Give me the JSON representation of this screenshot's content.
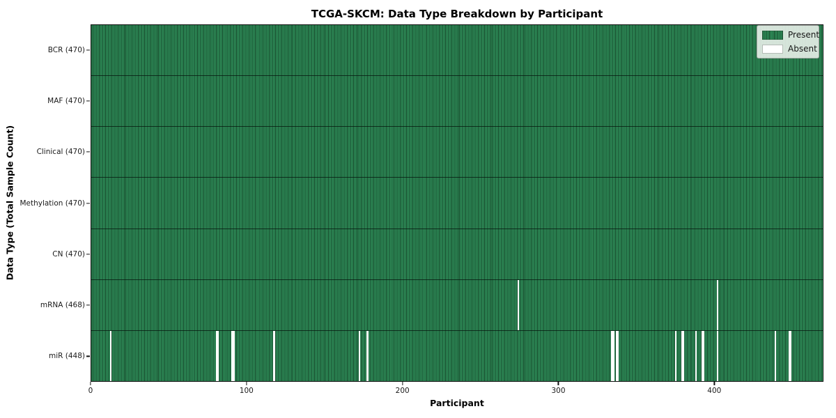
{
  "figure": {
    "title": "TCGA-SKCM: Data Type Breakdown by Participant",
    "xlabel": "Participant",
    "ylabel": "Data Type (Total Sample Count)"
  },
  "legend": {
    "items": [
      {
        "label": "Present",
        "color": "#2e8b57"
      },
      {
        "label": "Absent",
        "color": "#ffffff"
      }
    ]
  },
  "chart_data": {
    "type": "heatmap",
    "title": "TCGA-SKCM: Data Type Breakdown by Participant",
    "xlabel": "Participant",
    "ylabel": "Data Type (Total Sample Count)",
    "x_range": [
      0,
      470
    ],
    "x_ticks": [
      0,
      100,
      200,
      300,
      400
    ],
    "n_participants": 470,
    "grid": false,
    "legend_position": "upper right",
    "legend_entries": [
      "Present",
      "Absent"
    ],
    "colors": {
      "present": "#2e8b57",
      "present_edge": "#17492c",
      "absent": "#ffffff"
    },
    "rows": [
      {
        "data_type": "BCR",
        "label": "BCR (470)",
        "present_count": 470,
        "absent_participants": []
      },
      {
        "data_type": "MAF",
        "label": "MAF (470)",
        "present_count": 470,
        "absent_participants": []
      },
      {
        "data_type": "Clinical",
        "label": "Clinical (470)",
        "present_count": 470,
        "absent_participants": []
      },
      {
        "data_type": "Methylation",
        "label": "Methylation (470)",
        "present_count": 470,
        "absent_participants": []
      },
      {
        "data_type": "CN",
        "label": "CN (470)",
        "present_count": 470,
        "absent_participants": []
      },
      {
        "data_type": "mRNA",
        "label": "mRNA (468)",
        "present_count": 468,
        "absent_participants": [
          274,
          402
        ]
      },
      {
        "data_type": "miR",
        "label": "miR (448)",
        "present_count": 448,
        "absent_participants": [
          12,
          80,
          81,
          90,
          91,
          117,
          172,
          177,
          334,
          335,
          337,
          338,
          375,
          379,
          380,
          388,
          392,
          393,
          402,
          439,
          448,
          449
        ]
      }
    ]
  }
}
